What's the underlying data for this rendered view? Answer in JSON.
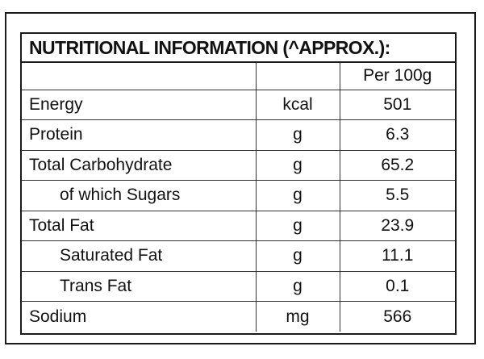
{
  "title": "NUTRITIONAL INFORMATION (^APPROX.):",
  "column_header": "Per 100g",
  "rows": [
    {
      "name": "Energy",
      "unit": "kcal",
      "value": "501"
    },
    {
      "name": "Protein",
      "unit": "g",
      "value": "6.3"
    },
    {
      "name": "Total Carbohydrate",
      "unit": "g",
      "value": "65.2"
    },
    {
      "name": "of which Sugars",
      "unit": "g",
      "value": "5.5"
    },
    {
      "name": "Total Fat",
      "unit": "g",
      "value": "23.9"
    },
    {
      "name": "Saturated Fat",
      "unit": "g",
      "value": "11.1"
    },
    {
      "name": "Trans Fat",
      "unit": "g",
      "value": "0.1"
    },
    {
      "name": "Sodium",
      "unit": "mg",
      "value": "566"
    }
  ]
}
